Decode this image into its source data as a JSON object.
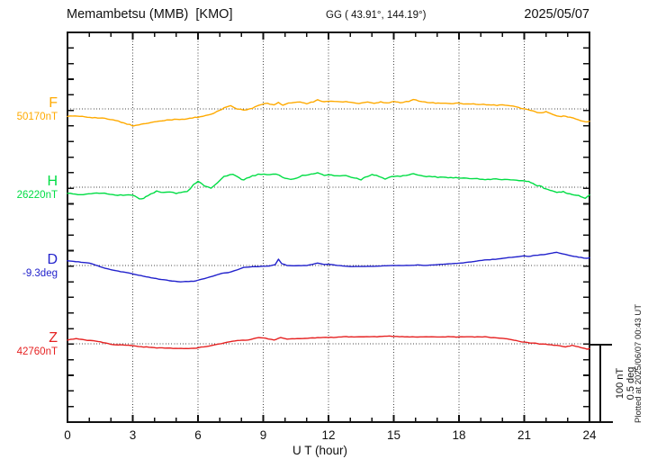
{
  "header": {
    "station_title": "Memambetsu (MMB)  [KMO]",
    "coords": "GG ( 43.91°, 144.19°)",
    "date": "2025/05/07"
  },
  "x_axis": {
    "label": "U T (hour)",
    "tick_labels": [
      "0",
      "3",
      "6",
      "9",
      "12",
      "15",
      "18",
      "21",
      "24"
    ]
  },
  "scale_bar": {
    "line1": "100 nT",
    "line2": "0.5 deg"
  },
  "plotted_at": "Plotted at 2025/06/07 00:43 UT",
  "channels": [
    {
      "id": "F",
      "label": "F",
      "value_label": "50170nT",
      "color": "#ffaa00"
    },
    {
      "id": "H",
      "label": "H",
      "value_label": "26220nT",
      "color": "#00dd44"
    },
    {
      "id": "D",
      "label": "D",
      "value_label": "-9.3deg",
      "color": "#2222cc"
    },
    {
      "id": "Z",
      "label": "Z",
      "value_label": "42760nT",
      "color": "#e62222"
    }
  ],
  "chart_data": {
    "type": "line",
    "title": "Memambetsu (MMB) [KMO] magnetogram 2025/05/07",
    "xlabel": "U T (hour)",
    "xlim": [
      0,
      24
    ],
    "xticks": [
      0,
      3,
      6,
      9,
      12,
      15,
      18,
      21,
      24
    ],
    "grid": "vertical dotted every 3 h; dotted horizontal baseline per trace",
    "scale_per_division": "100 nT / 0.5 deg",
    "note": "points are [hour UT, offset from reference value]",
    "series": [
      {
        "name": "F",
        "units": "nT",
        "reference": 50170,
        "color": "#ffaa00",
        "points": [
          [
            0,
            -9
          ],
          [
            0.8,
            -10
          ],
          [
            1.6,
            -12
          ],
          [
            2.2,
            -15
          ],
          [
            2.6,
            -18
          ],
          [
            3.0,
            -22
          ],
          [
            3.3,
            -20
          ],
          [
            3.6,
            -19
          ],
          [
            4.1,
            -16
          ],
          [
            4.8,
            -14
          ],
          [
            5.5,
            -13
          ],
          [
            6.1,
            -10
          ],
          [
            6.6,
            -7
          ],
          [
            7.0,
            -2
          ],
          [
            7.2,
            1
          ],
          [
            7.5,
            4
          ],
          [
            7.8,
            0
          ],
          [
            8.1,
            -2
          ],
          [
            8.5,
            1
          ],
          [
            8.8,
            5
          ],
          [
            9.2,
            7
          ],
          [
            9.5,
            5
          ],
          [
            9.7,
            8
          ],
          [
            9.9,
            5
          ],
          [
            10.3,
            8
          ],
          [
            10.7,
            9
          ],
          [
            11.0,
            7
          ],
          [
            11.3,
            9
          ],
          [
            11.5,
            12
          ],
          [
            11.8,
            9
          ],
          [
            12.0,
            10
          ],
          [
            12.4,
            9
          ],
          [
            12.8,
            9
          ],
          [
            13.4,
            7
          ],
          [
            13.8,
            9
          ],
          [
            14.1,
            7
          ],
          [
            14.4,
            9
          ],
          [
            14.8,
            8
          ],
          [
            15.0,
            10
          ],
          [
            15.3,
            8
          ],
          [
            15.7,
            10
          ],
          [
            15.9,
            12
          ],
          [
            16.3,
            9
          ],
          [
            16.8,
            8
          ],
          [
            17.5,
            7
          ],
          [
            18.2,
            7
          ],
          [
            18.9,
            6
          ],
          [
            19.6,
            5
          ],
          [
            20.0,
            5
          ],
          [
            20.6,
            3
          ],
          [
            21.0,
            0
          ],
          [
            21.4,
            -3
          ],
          [
            21.7,
            -5
          ],
          [
            22.0,
            -4
          ],
          [
            22.3,
            -7
          ],
          [
            22.6,
            -10
          ],
          [
            22.8,
            -9
          ],
          [
            23.1,
            -11
          ],
          [
            23.4,
            -13
          ],
          [
            23.6,
            -15
          ],
          [
            23.8,
            -17
          ],
          [
            24.0,
            -16
          ]
        ]
      },
      {
        "name": "H",
        "units": "nT",
        "reference": 26220,
        "color": "#00dd44",
        "points": [
          [
            0,
            -8
          ],
          [
            0.6,
            -10
          ],
          [
            1.1,
            -8
          ],
          [
            1.7,
            -8
          ],
          [
            2.2,
            -10
          ],
          [
            2.8,
            -10
          ],
          [
            3.1,
            -11
          ],
          [
            3.3,
            -15
          ],
          [
            3.5,
            -14
          ],
          [
            3.7,
            -11
          ],
          [
            4.1,
            -5
          ],
          [
            4.4,
            -7
          ],
          [
            4.7,
            -6
          ],
          [
            5.0,
            -8
          ],
          [
            5.2,
            -7
          ],
          [
            5.5,
            -6
          ],
          [
            5.8,
            3
          ],
          [
            6.0,
            8
          ],
          [
            6.3,
            2
          ],
          [
            6.6,
            -1
          ],
          [
            6.9,
            6
          ],
          [
            7.2,
            14
          ],
          [
            7.6,
            17
          ],
          [
            7.9,
            12
          ],
          [
            8.1,
            9
          ],
          [
            8.5,
            15
          ],
          [
            8.9,
            17
          ],
          [
            9.3,
            16
          ],
          [
            9.6,
            17
          ],
          [
            10.0,
            11
          ],
          [
            10.4,
            10
          ],
          [
            10.8,
            15
          ],
          [
            11.2,
            17
          ],
          [
            11.5,
            19
          ],
          [
            11.8,
            15
          ],
          [
            12.0,
            16
          ],
          [
            12.4,
            14
          ],
          [
            12.8,
            15
          ],
          [
            13.2,
            12
          ],
          [
            13.5,
            10
          ],
          [
            13.8,
            14
          ],
          [
            14.0,
            16
          ],
          [
            14.2,
            15
          ],
          [
            14.6,
            11
          ],
          [
            14.9,
            14
          ],
          [
            15.3,
            14
          ],
          [
            15.7,
            16
          ],
          [
            15.9,
            17
          ],
          [
            16.1,
            16
          ],
          [
            16.5,
            14
          ],
          [
            16.9,
            13
          ],
          [
            17.5,
            12
          ],
          [
            18.1,
            12
          ],
          [
            18.6,
            11
          ],
          [
            19.2,
            10
          ],
          [
            19.7,
            11
          ],
          [
            20.1,
            10
          ],
          [
            20.5,
            9
          ],
          [
            20.9,
            8
          ],
          [
            21.2,
            7
          ],
          [
            21.5,
            3
          ],
          [
            21.8,
            1
          ],
          [
            21.9,
            -1
          ],
          [
            22.2,
            -4
          ],
          [
            22.5,
            -7
          ],
          [
            22.8,
            -6
          ],
          [
            23.0,
            -8
          ],
          [
            23.3,
            -10
          ],
          [
            23.6,
            -12
          ],
          [
            23.8,
            -14
          ],
          [
            23.95,
            -11
          ],
          [
            24.0,
            -10
          ]
        ]
      },
      {
        "name": "D",
        "units": "deg",
        "reference": -9.3,
        "color": "#2222cc",
        "points": [
          [
            0,
            0.03
          ],
          [
            0.5,
            0.023
          ],
          [
            1.0,
            0.016
          ],
          [
            1.3,
            0.002
          ],
          [
            1.6,
            -0.012
          ],
          [
            2.1,
            -0.03
          ],
          [
            2.8,
            -0.048
          ],
          [
            3.5,
            -0.07
          ],
          [
            4.2,
            -0.088
          ],
          [
            4.8,
            -0.1
          ],
          [
            5.2,
            -0.105
          ],
          [
            5.8,
            -0.102
          ],
          [
            6.3,
            -0.085
          ],
          [
            6.8,
            -0.065
          ],
          [
            7.1,
            -0.05
          ],
          [
            7.4,
            -0.046
          ],
          [
            7.8,
            -0.028
          ],
          [
            8.1,
            -0.012
          ],
          [
            8.5,
            -0.008
          ],
          [
            8.9,
            -0.006
          ],
          [
            9.3,
            -0.002
          ],
          [
            9.55,
            0.006
          ],
          [
            9.7,
            0.04
          ],
          [
            9.85,
            0.012
          ],
          [
            10.1,
            0.0
          ],
          [
            10.5,
            -0.002
          ],
          [
            11.0,
            0.0
          ],
          [
            11.5,
            0.016
          ],
          [
            11.8,
            0.006
          ],
          [
            12.0,
            0.008
          ],
          [
            12.4,
            0.0
          ],
          [
            13.0,
            -0.006
          ],
          [
            13.7,
            -0.006
          ],
          [
            14.3,
            -0.004
          ],
          [
            15.0,
            0.0
          ],
          [
            15.7,
            0.0
          ],
          [
            16.1,
            0.004
          ],
          [
            16.5,
            0.0
          ],
          [
            16.8,
            0.004
          ],
          [
            17.3,
            0.008
          ],
          [
            17.8,
            0.013
          ],
          [
            18.2,
            0.017
          ],
          [
            18.7,
            0.027
          ],
          [
            19.3,
            0.037
          ],
          [
            19.8,
            0.042
          ],
          [
            20.3,
            0.052
          ],
          [
            20.7,
            0.056
          ],
          [
            21.0,
            0.062
          ],
          [
            21.2,
            0.058
          ],
          [
            21.5,
            0.066
          ],
          [
            21.9,
            0.071
          ],
          [
            22.5,
            0.085
          ],
          [
            22.9,
            0.071
          ],
          [
            23.3,
            0.058
          ],
          [
            23.6,
            0.052
          ],
          [
            23.9,
            0.046
          ],
          [
            24.0,
            0.05
          ]
        ]
      },
      {
        "name": "Z",
        "units": "nT",
        "reference": 42760,
        "color": "#e62222",
        "points": [
          [
            0,
            5
          ],
          [
            0.4,
            7
          ],
          [
            0.8,
            5
          ],
          [
            1.4,
            3
          ],
          [
            2.1,
            -1
          ],
          [
            2.8,
            -2
          ],
          [
            3.5,
            -4
          ],
          [
            4.1,
            -5
          ],
          [
            5.1,
            -6
          ],
          [
            5.8,
            -6
          ],
          [
            6.5,
            -3
          ],
          [
            7.2,
            1
          ],
          [
            7.7,
            4
          ],
          [
            8.3,
            5
          ],
          [
            8.8,
            8
          ],
          [
            9.1,
            7
          ],
          [
            9.5,
            5
          ],
          [
            9.8,
            8
          ],
          [
            10.1,
            6
          ],
          [
            10.8,
            7
          ],
          [
            11.5,
            8
          ],
          [
            12.0,
            8
          ],
          [
            12.7,
            9
          ],
          [
            13.4,
            9
          ],
          [
            14.0,
            9
          ],
          [
            14.8,
            10
          ],
          [
            15.5,
            9
          ],
          [
            16.1,
            9
          ],
          [
            17.0,
            9
          ],
          [
            17.5,
            9
          ],
          [
            18.0,
            9
          ],
          [
            18.6,
            9
          ],
          [
            19.2,
            9
          ],
          [
            19.6,
            8
          ],
          [
            20.0,
            7
          ],
          [
            20.3,
            6
          ],
          [
            21.0,
            2
          ],
          [
            21.4,
            1
          ],
          [
            21.7,
            0
          ],
          [
            22.1,
            -1
          ],
          [
            22.5,
            -2
          ],
          [
            22.9,
            -4
          ],
          [
            23.2,
            -2
          ],
          [
            23.5,
            -4
          ],
          [
            23.9,
            -7
          ],
          [
            24.0,
            -6
          ]
        ]
      }
    ]
  }
}
